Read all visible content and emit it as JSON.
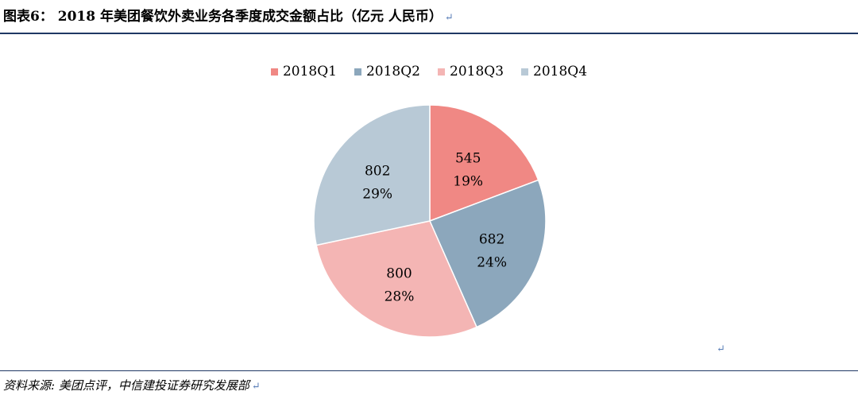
{
  "header": {
    "title": "图表6： 2018 年美团餐饮外卖业务各季度成交金额占比（亿元 人民币）",
    "return_mark": "↵"
  },
  "source": {
    "text": "资料来源: 美团点评，中信建投证券研究发展部"
  },
  "stray_mark": "↵",
  "chart_data": {
    "type": "pie",
    "title": "",
    "categories": [
      "2018Q1",
      "2018Q2",
      "2018Q3",
      "2018Q4"
    ],
    "values": [
      545,
      682,
      800,
      802
    ],
    "percent_labels": [
      "19%",
      "24%",
      "28%",
      "29%"
    ],
    "colors": [
      "#f08884",
      "#8ca7bc",
      "#f4b5b4",
      "#b8c9d6"
    ],
    "legend_position": "top"
  }
}
